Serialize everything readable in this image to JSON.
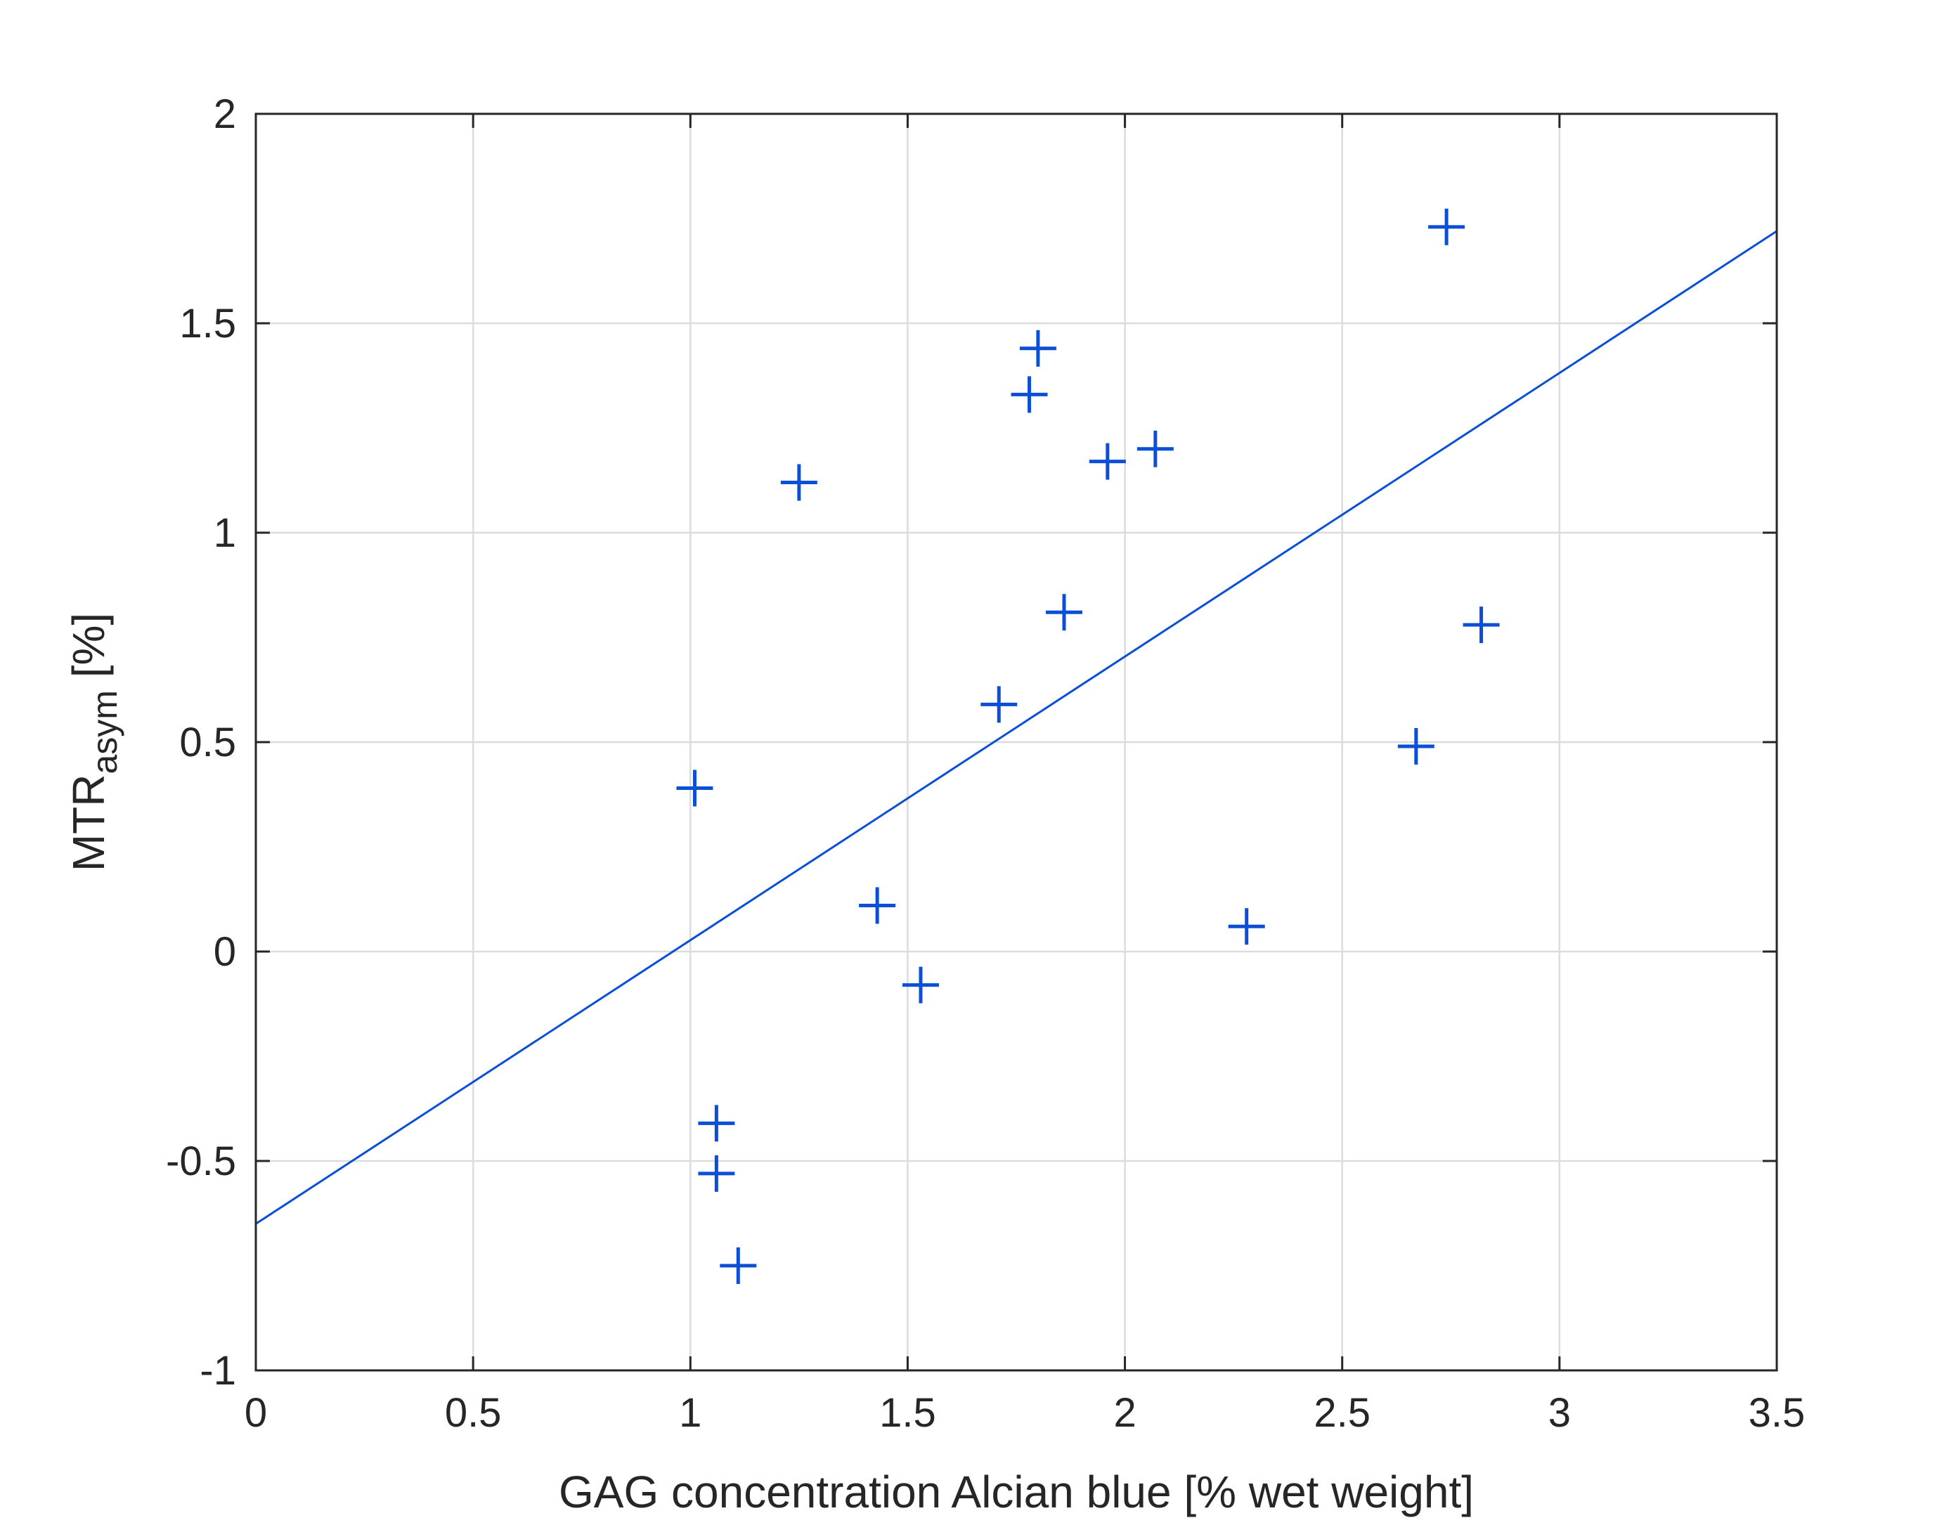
{
  "chart_data": {
    "type": "scatter",
    "title": "",
    "xlabel": "GAG concentration Alcian blue [% wet weight]",
    "ylabel": {
      "main": "MTR",
      "subscript": "asym",
      "suffix": " [%]"
    },
    "xlim": [
      0,
      3.5
    ],
    "ylim": [
      -1,
      2
    ],
    "xticks": [
      0,
      0.5,
      1,
      1.5,
      2,
      2.5,
      3,
      3.5
    ],
    "xtick_labels": [
      "0",
      "0.5",
      "1",
      "1.5",
      "2",
      "2.5",
      "3",
      "3.5"
    ],
    "yticks": [
      -1,
      -0.5,
      0,
      0.5,
      1,
      1.5,
      2
    ],
    "ytick_labels": [
      "-1",
      "-0.5",
      "0",
      "0.5",
      "1",
      "1.5",
      "2"
    ],
    "grid": true,
    "marker": "plus",
    "color": "#0a4fd6",
    "points": [
      {
        "x": 1.01,
        "y": 0.39
      },
      {
        "x": 1.06,
        "y": -0.41
      },
      {
        "x": 1.06,
        "y": -0.53
      },
      {
        "x": 1.11,
        "y": -0.75
      },
      {
        "x": 1.25,
        "y": 1.12
      },
      {
        "x": 1.43,
        "y": 0.11
      },
      {
        "x": 1.53,
        "y": -0.08
      },
      {
        "x": 1.71,
        "y": 0.59
      },
      {
        "x": 1.78,
        "y": 1.33
      },
      {
        "x": 1.8,
        "y": 1.44
      },
      {
        "x": 1.86,
        "y": 0.81
      },
      {
        "x": 1.96,
        "y": 1.17
      },
      {
        "x": 2.07,
        "y": 1.2
      },
      {
        "x": 2.28,
        "y": 0.06
      },
      {
        "x": 2.67,
        "y": 0.49
      },
      {
        "x": 2.74,
        "y": 1.73
      },
      {
        "x": 2.82,
        "y": 0.78
      }
    ],
    "fit_line": {
      "x0": 0,
      "y0": -0.65,
      "x1": 3.5,
      "y1": 1.72
    }
  }
}
